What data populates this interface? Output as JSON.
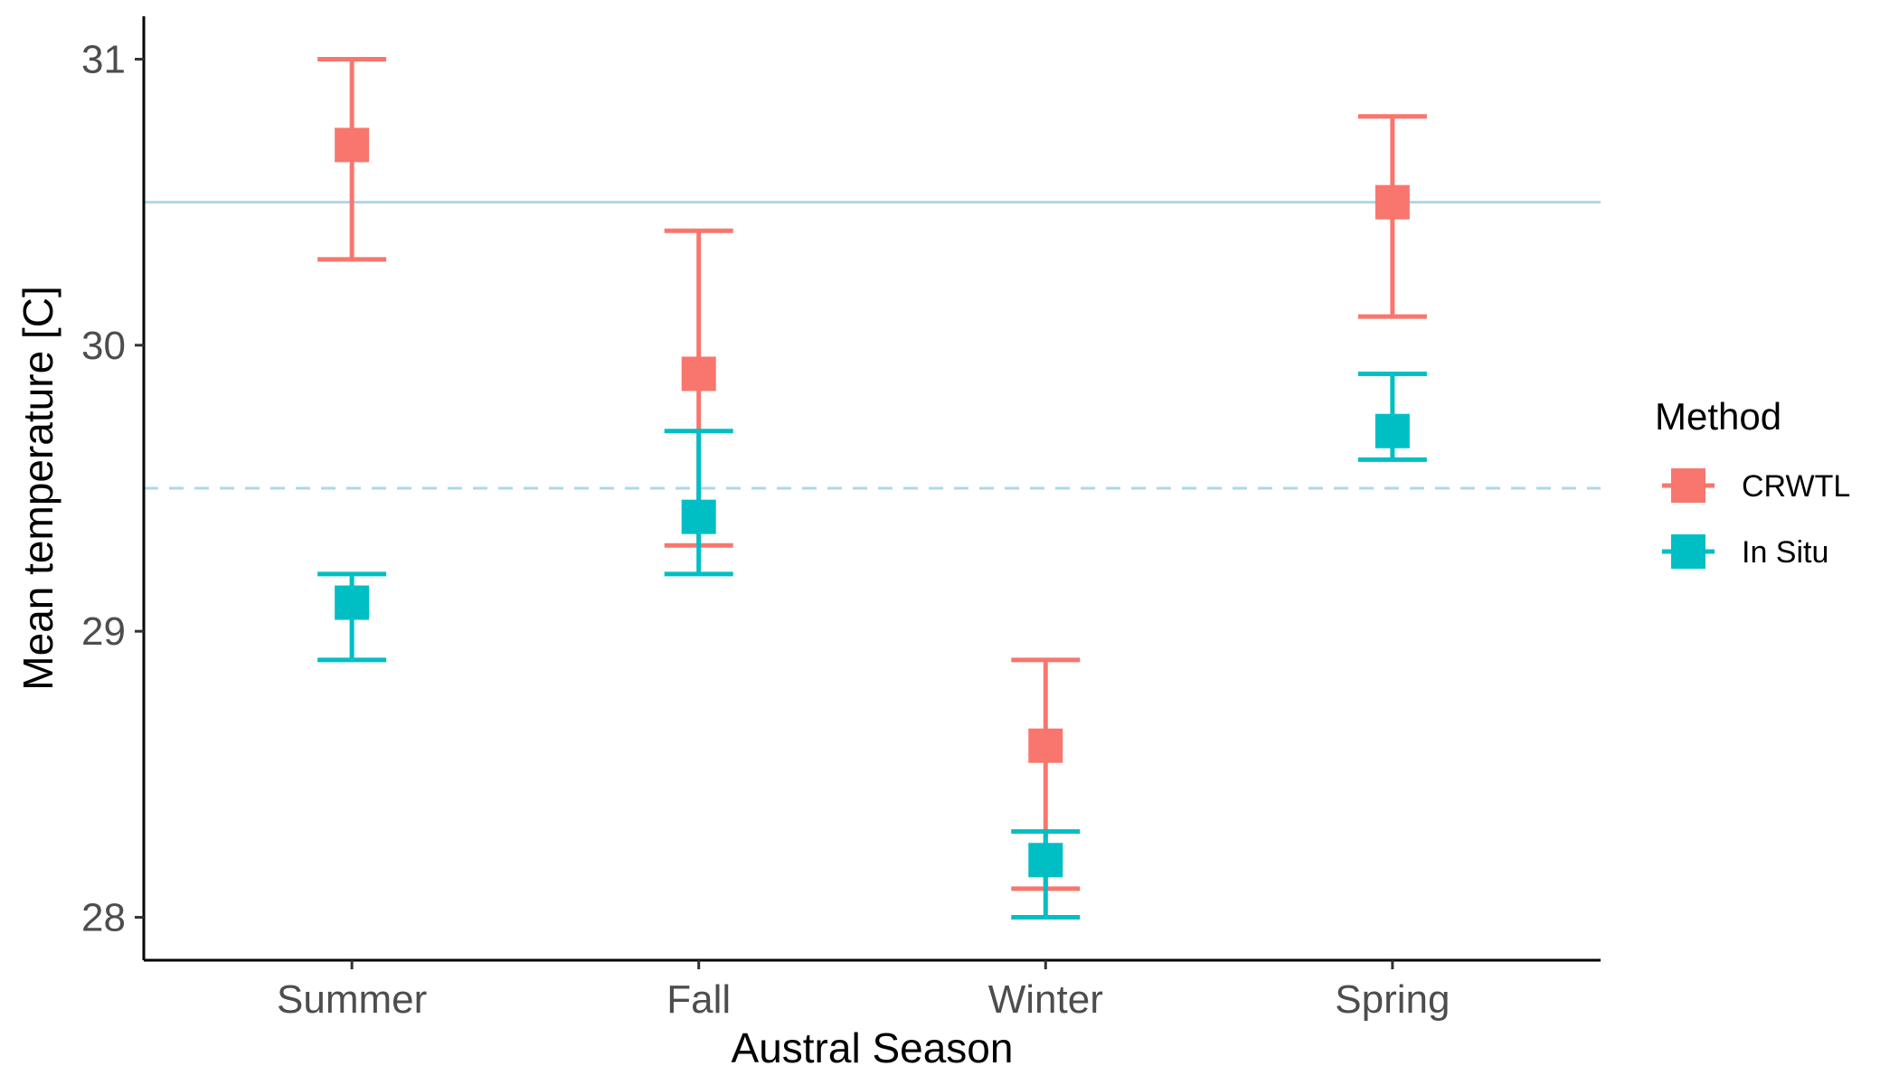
{
  "chart_data": {
    "type": "scatter",
    "title": "",
    "xlabel": "Austral Season",
    "ylabel": "Mean temperature [C]",
    "categories": [
      "Summer",
      "Fall",
      "Winter",
      "Spring"
    ],
    "ylim": [
      27.85,
      31.15
    ],
    "yticks": [
      28,
      29,
      30,
      31
    ],
    "grid": false,
    "legend": {
      "title": "Method",
      "placement": "right"
    },
    "series": [
      {
        "name": "CRWTL",
        "color": "#F8766D",
        "values": [
          30.7,
          29.9,
          28.6,
          30.5
        ],
        "lower": [
          30.3,
          29.3,
          28.1,
          30.1
        ],
        "upper": [
          31.0,
          30.4,
          28.9,
          30.8
        ]
      },
      {
        "name": "In Situ",
        "color": "#00BFC4",
        "values": [
          29.1,
          29.4,
          28.2,
          29.7
        ],
        "lower": [
          28.9,
          29.2,
          28.0,
          29.6
        ],
        "upper": [
          29.2,
          29.7,
          28.3,
          29.9
        ]
      }
    ],
    "reference_lines": [
      {
        "y": 30.5,
        "style": "solid",
        "color": "#ADD8E6"
      },
      {
        "y": 29.5,
        "style": "dashed",
        "color": "#ADD8E6"
      }
    ]
  }
}
